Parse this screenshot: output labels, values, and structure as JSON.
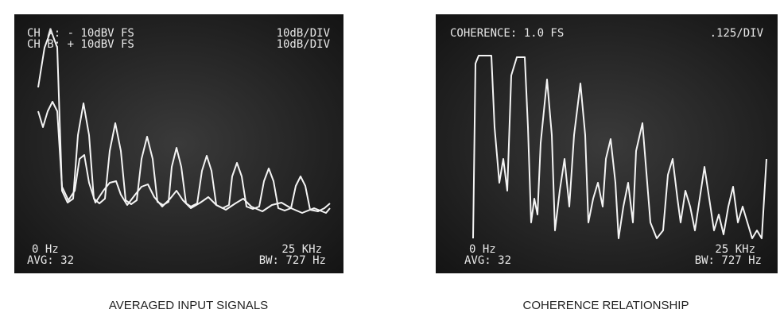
{
  "panels": [
    {
      "lines": [
        [
          "CH A: - 10dBV  FS",
          "10dB/DIV"
        ],
        [
          "CH B: + 10dBV  FS",
          "10dB/DIV"
        ]
      ],
      "start": "0 Hz",
      "avg": "AVG: 32",
      "stop": "25 KHz",
      "bw": "BW: 727 Hz",
      "caption": "AVERAGED INPUT SIGNALS"
    },
    {
      "lines": [
        [
          "COHERENCE: 1.0 FS",
          ".125/DIV"
        ]
      ],
      "start": "0 Hz",
      "avg": "AVG: 32",
      "stop": "25 KHz",
      "bw": "BW: 727 Hz",
      "caption": "COHERENCE RELATIONSHIP"
    }
  ]
}
